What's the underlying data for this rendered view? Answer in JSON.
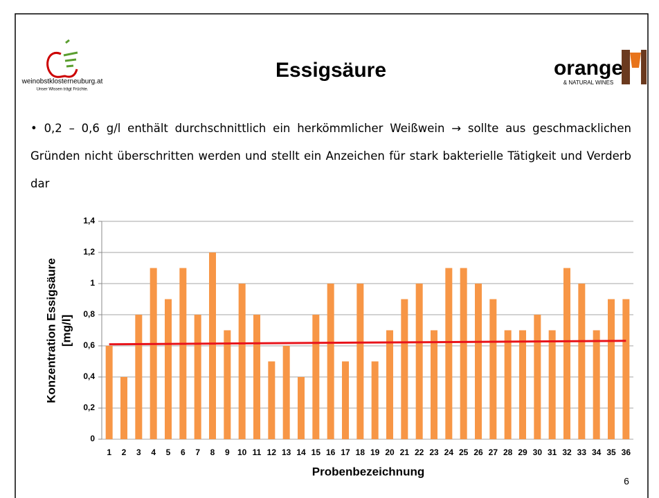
{
  "slide": {
    "title": "Essigsäure",
    "text": "0,2 – 0,6 g/l enthält durchschnittlich ein herkömmlicher Weißwein → sollte aus geschmacklichen Gründen nicht überschritten werden und stellt ein Anzeichen für stark bakterielle Tätigkeit und Verderb dar",
    "page_number": "6",
    "logo_left": {
      "name": "weinobstklosterneuburg.at",
      "slogan": "Unser Wissen trägt Früchte."
    },
    "logo_right": {
      "name": "orange",
      "subtitle": "& NATURAL WINES"
    }
  },
  "chart_data": {
    "type": "bar",
    "categories": [
      "1",
      "2",
      "3",
      "4",
      "5",
      "6",
      "7",
      "8",
      "9",
      "10",
      "11",
      "12",
      "13",
      "14",
      "15",
      "16",
      "17",
      "18",
      "19",
      "20",
      "21",
      "22",
      "23",
      "24",
      "25",
      "26",
      "27",
      "28",
      "29",
      "30",
      "31",
      "32",
      "33",
      "34",
      "35",
      "36"
    ],
    "values": [
      0.6,
      0.4,
      0.8,
      1.1,
      0.9,
      1.1,
      0.8,
      1.2,
      0.7,
      1.0,
      0.8,
      0.5,
      0.6,
      0.4,
      0.8,
      1.0,
      0.5,
      1.0,
      0.5,
      0.7,
      0.9,
      1.0,
      0.7,
      1.1,
      1.1,
      1.0,
      0.9,
      0.7,
      0.7,
      0.8,
      0.7,
      1.1,
      1.0,
      0.7,
      0.9,
      0.9
    ],
    "color": "#f79646",
    "trendline": {
      "color": "#e8141b",
      "values": [
        0.61,
        0.632
      ]
    },
    "ylim": [
      0,
      1.4
    ],
    "yticks": [
      0,
      {
        "value": 0.2,
        "label": "0,2"
      },
      {
        "value": 0.4,
        "label": "0,4"
      },
      {
        "value": 0.6,
        "label": "0,6"
      },
      {
        "value": 0.8,
        "label": "0,8"
      },
      1,
      {
        "value": 1.2,
        "label": "1,2"
      },
      {
        "value": 1.4,
        "label": "1,4"
      }
    ],
    "ylabel": [
      "Konzentration Essigsäure",
      "[mg/l]"
    ],
    "xlabel": "Probenbezeichnung",
    "grid": true
  }
}
